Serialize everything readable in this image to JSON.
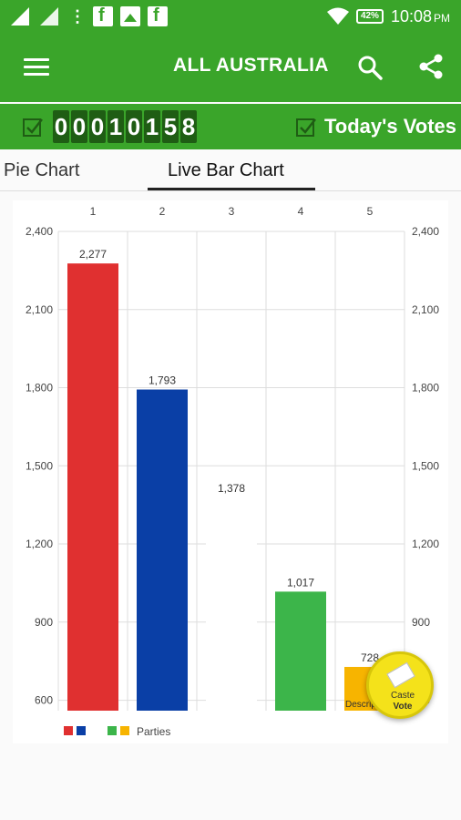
{
  "status_bar": {
    "time": "10:08",
    "time_suffix": "PM",
    "battery": "42%",
    "icons": [
      "signal-icon",
      "signal-icon",
      "overflow-dots-icon",
      "facebook-icon",
      "image-icon",
      "facebook-icon",
      "wifi-icon",
      "battery-icon"
    ]
  },
  "app_bar": {
    "title": "ALL AUSTRALIA",
    "icons": [
      "menu-icon",
      "search-icon",
      "share-icon"
    ]
  },
  "counter": {
    "digits": [
      "0",
      "0",
      "0",
      "1",
      "0",
      "1",
      "5",
      "8"
    ],
    "todays_votes_label": "Today's Votes"
  },
  "tabs": [
    {
      "label": "Pie Chart",
      "active": false
    },
    {
      "label": "Live Bar Chart",
      "active": true
    }
  ],
  "chart_data": {
    "type": "bar",
    "categories": [
      "1",
      "2",
      "3",
      "4",
      "5"
    ],
    "values": [
      2277,
      1793,
      1378,
      1017,
      728
    ],
    "value_labels": [
      "2,277",
      "1,793",
      "1,378",
      "1,017",
      "728"
    ],
    "colors": [
      "#e03030",
      "#0a3fa6",
      "#ffffff",
      "#3cb54a",
      "#f7b400"
    ],
    "ylim": [
      560,
      2400
    ],
    "yticks": [
      600,
      900,
      1200,
      1500,
      1800,
      2100,
      2400
    ],
    "ytick_labels": [
      "600",
      "900",
      "1,200",
      "1,500",
      "1,800",
      "2,100",
      "2,400"
    ],
    "bar_inner_text": [
      "",
      "",
      "",
      "",
      "Description"
    ],
    "legend": {
      "swatches": [
        "#e03030",
        "#0a3fa6",
        "#3cb54a",
        "#f7b400"
      ],
      "label": "Parties",
      "placement": "bottom-left"
    },
    "grid": true
  },
  "fab": {
    "line1": "Caste",
    "line2": "Vote"
  },
  "colors": {
    "primary": "#3aa52a",
    "digit_bg": "#1f5d14"
  }
}
